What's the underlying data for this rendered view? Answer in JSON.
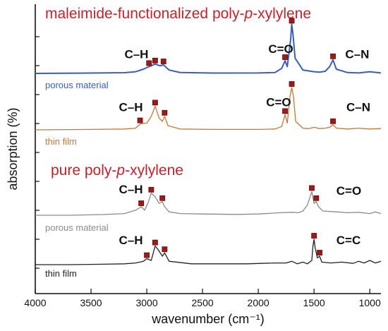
{
  "chart_data": {
    "type": "line",
    "xlabel": "wavenumber (cm⁻¹)",
    "ylabel": "absorption (%)",
    "xlim": [
      4000,
      900
    ],
    "x_ticks": [
      "4000",
      "3500",
      "3000",
      "2500",
      "2000",
      "1500",
      "1000"
    ],
    "x_axis_reversed": true,
    "sections": [
      {
        "title_parts": [
          "maleimide-functionalized poly-",
          "p",
          "-xylylene"
        ],
        "series_indices": [
          0,
          1
        ]
      },
      {
        "title_parts": [
          "pure poly-",
          "p",
          "-xylylene"
        ],
        "series_indices": [
          2,
          3
        ]
      }
    ],
    "series": [
      {
        "name": "porous material",
        "color": "#3a5fb0",
        "points": [
          [
            4000,
            0
          ],
          [
            3600,
            0.3
          ],
          [
            3200,
            0.8
          ],
          [
            3100,
            2
          ],
          [
            3030,
            5
          ],
          [
            2980,
            8
          ],
          [
            2925,
            11
          ],
          [
            2880,
            9
          ],
          [
            2850,
            10
          ],
          [
            2800,
            4
          ],
          [
            2700,
            1
          ],
          [
            2400,
            0.4
          ],
          [
            2000,
            0.5
          ],
          [
            1850,
            1
          ],
          [
            1790,
            6
          ],
          [
            1760,
            15
          ],
          [
            1740,
            8
          ],
          [
            1710,
            40
          ],
          [
            1700,
            58
          ],
          [
            1690,
            48
          ],
          [
            1670,
            18
          ],
          [
            1600,
            4
          ],
          [
            1500,
            2
          ],
          [
            1450,
            1.5
          ],
          [
            1400,
            2.5
          ],
          [
            1360,
            8
          ],
          [
            1330,
            16
          ],
          [
            1300,
            5
          ],
          [
            1200,
            1
          ],
          [
            1100,
            0.5
          ],
          [
            1000,
            2
          ],
          [
            900,
            0.5
          ]
        ],
        "peaks": [
          {
            "x": 2980,
            "y": 8
          },
          {
            "x": 2925,
            "y": 11
          },
          {
            "x": 2850,
            "y": 10
          },
          {
            "x": 1760,
            "y": 15
          },
          {
            "x": 1700,
            "y": 58
          },
          {
            "x": 1330,
            "y": 16
          }
        ],
        "annotations": [
          {
            "text": "C–H",
            "x": 3200,
            "y": 18
          },
          {
            "text": "C=O",
            "x": 1910,
            "y": 24
          },
          {
            "text": "C–N",
            "x": 1220,
            "y": 18
          }
        ]
      },
      {
        "name": "thin film",
        "color": "#c07838",
        "points": [
          [
            4000,
            0
          ],
          [
            3500,
            0.5
          ],
          [
            3200,
            1
          ],
          [
            3100,
            2
          ],
          [
            3060,
            7
          ],
          [
            3000,
            8
          ],
          [
            2960,
            16
          ],
          [
            2925,
            28
          ],
          [
            2890,
            14
          ],
          [
            2860,
            10
          ],
          [
            2840,
            16
          ],
          [
            2810,
            5
          ],
          [
            2700,
            1
          ],
          [
            2400,
            0.5
          ],
          [
            2000,
            0.5
          ],
          [
            1850,
            1
          ],
          [
            1790,
            4
          ],
          [
            1760,
            18
          ],
          [
            1740,
            8
          ],
          [
            1715,
            40
          ],
          [
            1700,
            50
          ],
          [
            1685,
            40
          ],
          [
            1665,
            10
          ],
          [
            1600,
            2
          ],
          [
            1550,
            1.5
          ],
          [
            1500,
            3
          ],
          [
            1450,
            1.5
          ],
          [
            1400,
            2
          ],
          [
            1360,
            3
          ],
          [
            1330,
            6
          ],
          [
            1300,
            2
          ],
          [
            1200,
            1
          ],
          [
            1100,
            2
          ],
          [
            1000,
            1
          ],
          [
            900,
            1.5
          ]
        ],
        "peaks": [
          {
            "x": 3060,
            "y": 7
          },
          {
            "x": 2925,
            "y": 28
          },
          {
            "x": 2840,
            "y": 16
          },
          {
            "x": 1760,
            "y": 18
          },
          {
            "x": 1700,
            "y": 50
          },
          {
            "x": 1330,
            "y": 6
          }
        ],
        "annotations": [
          {
            "text": "C–H",
            "x": 3250,
            "y": 22
          },
          {
            "text": "C=O",
            "x": 1930,
            "y": 28
          },
          {
            "text": "C–N",
            "x": 1210,
            "y": 22
          }
        ]
      },
      {
        "name": "porous material",
        "color": "#8a8a8a",
        "points": [
          [
            4000,
            0
          ],
          [
            3700,
            0
          ],
          [
            3400,
            0.8
          ],
          [
            3200,
            2
          ],
          [
            3100,
            6
          ],
          [
            3050,
            10
          ],
          [
            3020,
            6
          ],
          [
            2990,
            14
          ],
          [
            2960,
            26
          ],
          [
            2925,
            22
          ],
          [
            2890,
            14
          ],
          [
            2860,
            16
          ],
          [
            2840,
            10
          ],
          [
            2800,
            4
          ],
          [
            2700,
            2
          ],
          [
            2500,
            1.5
          ],
          [
            2200,
            1
          ],
          [
            2000,
            1.5
          ],
          [
            1800,
            3
          ],
          [
            1700,
            3.5
          ],
          [
            1640,
            3
          ],
          [
            1600,
            5
          ],
          [
            1560,
            12
          ],
          [
            1520,
            28
          ],
          [
            1500,
            14
          ],
          [
            1480,
            16
          ],
          [
            1460,
            10
          ],
          [
            1420,
            5
          ],
          [
            1300,
            4
          ],
          [
            1200,
            3
          ],
          [
            1100,
            3.5
          ],
          [
            1000,
            2
          ],
          [
            950,
            4
          ],
          [
            900,
            2
          ]
        ],
        "peaks": [
          {
            "x": 3050,
            "y": 10
          },
          {
            "x": 2960,
            "y": 26
          },
          {
            "x": 2860,
            "y": 16
          },
          {
            "x": 1520,
            "y": 28
          },
          {
            "x": 1480,
            "y": 16
          }
        ],
        "annotations": [
          {
            "text": "C–H",
            "x": 3250,
            "y": 26
          },
          {
            "text": "C=O",
            "x": 1300,
            "y": 24
          }
        ]
      },
      {
        "name": "thin film",
        "color": "#222222",
        "points": [
          [
            4000,
            0
          ],
          [
            3700,
            0
          ],
          [
            3400,
            0.5
          ],
          [
            3200,
            1
          ],
          [
            3100,
            2
          ],
          [
            3030,
            4
          ],
          [
            3000,
            7
          ],
          [
            2960,
            5
          ],
          [
            2925,
            22
          ],
          [
            2900,
            18
          ],
          [
            2860,
            10
          ],
          [
            2840,
            14
          ],
          [
            2800,
            4
          ],
          [
            2600,
            1
          ],
          [
            2400,
            1
          ],
          [
            2100,
            1
          ],
          [
            1850,
            2
          ],
          [
            1750,
            2
          ],
          [
            1700,
            4
          ],
          [
            1650,
            1
          ],
          [
            1600,
            3
          ],
          [
            1560,
            1
          ],
          [
            1520,
            5
          ],
          [
            1510,
            22
          ],
          [
            1500,
            30
          ],
          [
            1490,
            20
          ],
          [
            1470,
            8
          ],
          [
            1450,
            10
          ],
          [
            1430,
            3
          ],
          [
            1350,
            2
          ],
          [
            1250,
            3
          ],
          [
            1150,
            1.5
          ],
          [
            1100,
            4
          ],
          [
            1050,
            2
          ],
          [
            1000,
            5
          ],
          [
            950,
            2
          ],
          [
            900,
            4
          ]
        ],
        "peaks": [
          {
            "x": 3000,
            "y": 7
          },
          {
            "x": 2925,
            "y": 22
          },
          {
            "x": 2840,
            "y": 14
          },
          {
            "x": 1500,
            "y": 30
          },
          {
            "x": 1450,
            "y": 10
          }
        ],
        "annotations": [
          {
            "text": "C–H",
            "x": 3250,
            "y": 24
          },
          {
            "text": "C=C",
            "x": 1300,
            "y": 24
          }
        ]
      }
    ]
  }
}
